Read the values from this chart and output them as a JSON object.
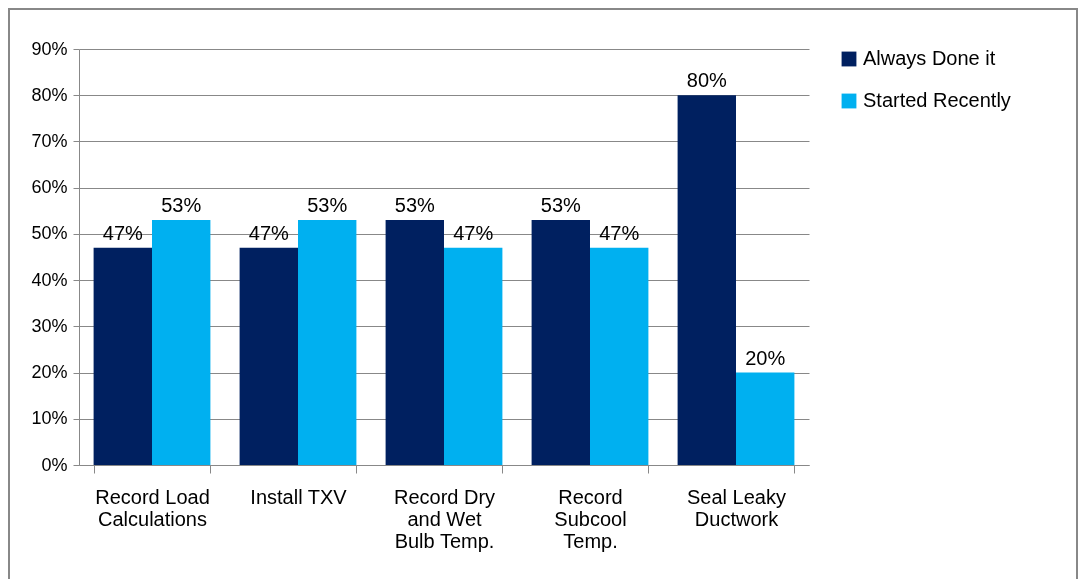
{
  "chart_data": {
    "type": "bar",
    "categories": [
      "Record Load Calculations",
      "Install TXV",
      "Record Dry and Wet Bulb Temp.",
      "Record Subcool Temp.",
      "Seal Leaky Ductwork"
    ],
    "series": [
      {
        "name": "Always Done it",
        "color": "#002060",
        "values": [
          47,
          47,
          53,
          53,
          80
        ],
        "value_labels": [
          "47%",
          "47%",
          "53%",
          "53%",
          "80%"
        ]
      },
      {
        "name": "Started Recently",
        "color": "#00b0f0",
        "values": [
          53,
          53,
          47,
          47,
          20
        ],
        "value_labels": [
          "53%",
          "53%",
          "47%",
          "47%",
          "20%"
        ]
      }
    ],
    "ylim": [
      0,
      90
    ],
    "yticks": [
      {
        "value": 0,
        "label": "0%"
      },
      {
        "value": 10,
        "label": "10%"
      },
      {
        "value": 20,
        "label": "20%"
      },
      {
        "value": 30,
        "label": "30%"
      },
      {
        "value": 40,
        "label": "40%"
      },
      {
        "value": 50,
        "label": "50%"
      },
      {
        "value": 60,
        "label": "60%"
      },
      {
        "value": 70,
        "label": "70%"
      },
      {
        "value": 80,
        "label": "80%"
      },
      {
        "value": 90,
        "label": "90%"
      }
    ],
    "grid": "y",
    "legend": "right"
  }
}
